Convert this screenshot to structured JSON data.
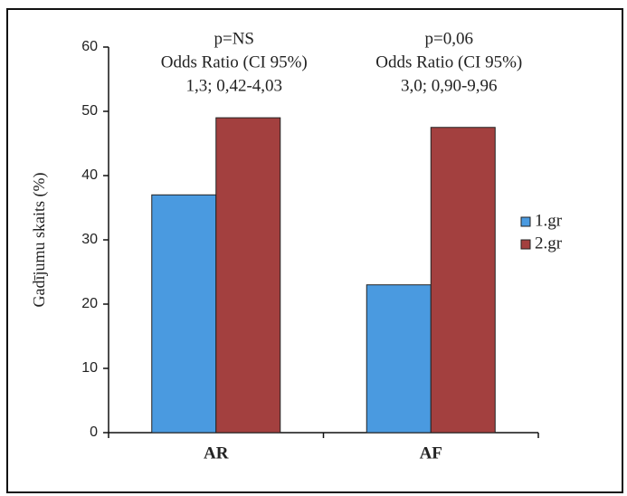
{
  "chart_data": {
    "type": "bar",
    "y_label": "Gadījumu skaits (%)",
    "categories": [
      "AR",
      "AF"
    ],
    "series": [
      {
        "name": "1.gr",
        "color": "#4a9ae0",
        "values": [
          37,
          23
        ]
      },
      {
        "name": "2.gr",
        "color": "#a3403f",
        "values": [
          49,
          47.5
        ]
      }
    ],
    "annotations": [
      [
        "p=NS",
        "Odds Ratio (CI 95%)",
        "1,3; 0,42-4,03"
      ],
      [
        "p=0,06",
        "Odds Ratio (CI 95%)",
        "3,0; 0,90-9,96"
      ]
    ],
    "ylim": [
      0,
      60
    ],
    "yticks": [
      0,
      10,
      20,
      30,
      40,
      50,
      60
    ],
    "legend": "right"
  }
}
